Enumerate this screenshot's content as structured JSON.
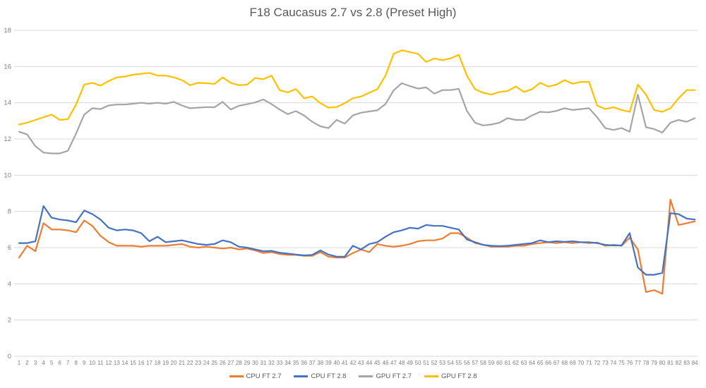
{
  "chart_data": {
    "type": "line",
    "title": "F18 Caucasus 2.7 vs 2.8 (Preset High)",
    "xlabel": "",
    "ylabel": "",
    "ylim": [
      0,
      18
    ],
    "grid": true,
    "legend_position": "bottom-center",
    "grid_color": "#d9d9d9",
    "tick_color": "#808080",
    "title_color": "#595959",
    "x_ticks": [
      "1",
      "2",
      "3",
      "4",
      "5",
      "6",
      "7",
      "8",
      "9",
      "10",
      "11",
      "12",
      "13",
      "14",
      "15",
      "16",
      "17",
      "18",
      "19",
      "20",
      "21",
      "22",
      "23",
      "24",
      "25",
      "26",
      "27",
      "28",
      "29",
      "30",
      "31",
      "32",
      "33",
      "34",
      "35",
      "36",
      "37",
      "38",
      "39",
      "40",
      "41",
      "42",
      "43",
      "44",
      "45",
      "46",
      "47",
      "48",
      "49",
      "50",
      "51",
      "52",
      "53",
      "54",
      "55",
      "56",
      "57",
      "58",
      "59",
      "60",
      "61",
      "62",
      "63",
      "64",
      "65",
      "66",
      "67",
      "68",
      "69",
      "70",
      "71",
      "72",
      "73",
      "74",
      "75",
      "76",
      "77",
      "78",
      "79",
      "80",
      "81",
      "82",
      "83",
      "84"
    ],
    "y_ticks": [
      0,
      2,
      4,
      6,
      8,
      10,
      12,
      14,
      16,
      18
    ],
    "series": [
      {
        "name": "CPU FT 2.7",
        "color": "#ED7D31",
        "values": [
          5.45,
          6.1,
          5.8,
          7.35,
          7.0,
          7.0,
          6.95,
          6.85,
          7.5,
          7.2,
          6.65,
          6.3,
          6.1,
          6.1,
          6.1,
          6.05,
          6.1,
          6.1,
          6.1,
          6.15,
          6.2,
          6.05,
          6.0,
          6.05,
          6.0,
          5.95,
          6.0,
          5.9,
          5.95,
          5.85,
          5.7,
          5.75,
          5.65,
          5.6,
          5.6,
          5.55,
          5.55,
          5.75,
          5.5,
          5.45,
          5.45,
          5.7,
          5.9,
          5.75,
          6.2,
          6.1,
          6.05,
          6.1,
          6.2,
          6.35,
          6.4,
          6.4,
          6.5,
          6.8,
          6.8,
          6.55,
          6.25,
          6.15,
          6.05,
          6.05,
          6.05,
          6.1,
          6.1,
          6.2,
          6.25,
          6.3,
          6.25,
          6.3,
          6.25,
          6.3,
          6.25,
          6.28,
          6.1,
          6.15,
          6.1,
          6.55,
          5.9,
          3.55,
          3.65,
          3.45,
          8.65,
          7.25,
          7.35,
          7.45
        ]
      },
      {
        "name": "CPU FT 2.8",
        "color": "#4472C4",
        "values": [
          6.25,
          6.25,
          6.35,
          8.3,
          7.65,
          7.55,
          7.5,
          7.4,
          8.05,
          7.85,
          7.55,
          7.1,
          6.95,
          7.0,
          6.95,
          6.8,
          6.35,
          6.6,
          6.3,
          6.35,
          6.4,
          6.3,
          6.2,
          6.15,
          6.2,
          6.4,
          6.3,
          6.05,
          6.0,
          5.9,
          5.8,
          5.82,
          5.72,
          5.67,
          5.62,
          5.57,
          5.6,
          5.85,
          5.62,
          5.5,
          5.5,
          6.1,
          5.9,
          6.2,
          6.3,
          6.6,
          6.85,
          6.95,
          7.1,
          7.05,
          7.25,
          7.2,
          7.2,
          7.1,
          7.0,
          6.45,
          6.3,
          6.15,
          6.1,
          6.08,
          6.1,
          6.15,
          6.2,
          6.25,
          6.4,
          6.3,
          6.35,
          6.32,
          6.35,
          6.3,
          6.3,
          6.25,
          6.15,
          6.12,
          6.12,
          6.8,
          4.9,
          4.5,
          4.5,
          4.6,
          7.9,
          7.85,
          7.6,
          7.55
        ]
      },
      {
        "name": "GPU FT 2.7",
        "color": "#A5A5A5",
        "values": [
          12.4,
          12.25,
          11.6,
          11.25,
          11.2,
          11.2,
          11.35,
          12.3,
          13.35,
          13.7,
          13.65,
          13.85,
          13.9,
          13.9,
          13.95,
          14.0,
          13.95,
          14.0,
          13.95,
          14.05,
          13.85,
          13.7,
          13.73,
          13.76,
          13.75,
          14.05,
          13.63,
          13.83,
          13.92,
          14.02,
          14.18,
          13.93,
          13.63,
          13.37,
          13.54,
          13.3,
          12.95,
          12.7,
          12.6,
          13.05,
          12.85,
          13.3,
          13.45,
          13.52,
          13.58,
          13.93,
          14.68,
          15.08,
          14.92,
          14.78,
          14.85,
          14.5,
          14.7,
          14.7,
          14.77,
          13.55,
          12.9,
          12.75,
          12.8,
          12.9,
          13.15,
          13.05,
          13.05,
          13.3,
          13.5,
          13.47,
          13.55,
          13.7,
          13.6,
          13.65,
          13.7,
          13.2,
          12.6,
          12.5,
          12.6,
          12.4,
          14.45,
          12.65,
          12.55,
          12.35,
          12.9,
          13.05,
          12.95,
          13.15
        ]
      },
      {
        "name": "GPU FT 2.8",
        "color": "#FFC000",
        "values": [
          12.8,
          12.9,
          13.05,
          13.2,
          13.35,
          13.05,
          13.1,
          13.9,
          15.0,
          15.1,
          14.95,
          15.2,
          15.4,
          15.45,
          15.55,
          15.6,
          15.65,
          15.5,
          15.5,
          15.4,
          15.25,
          14.97,
          15.1,
          15.08,
          15.04,
          15.4,
          15.1,
          14.97,
          15.0,
          15.37,
          15.3,
          15.5,
          14.7,
          14.57,
          14.76,
          14.25,
          14.35,
          13.98,
          13.73,
          13.76,
          13.98,
          14.25,
          14.35,
          14.55,
          14.75,
          15.5,
          16.7,
          16.9,
          16.8,
          16.7,
          16.25,
          16.45,
          16.35,
          16.45,
          16.65,
          15.5,
          14.75,
          14.55,
          14.45,
          14.6,
          14.65,
          14.9,
          14.6,
          14.75,
          15.1,
          14.9,
          15.0,
          15.25,
          15.05,
          15.15,
          15.15,
          13.85,
          13.65,
          13.75,
          13.6,
          13.5,
          15.0,
          14.45,
          13.6,
          13.5,
          13.7,
          14.25,
          14.7,
          14.7
        ]
      }
    ]
  }
}
